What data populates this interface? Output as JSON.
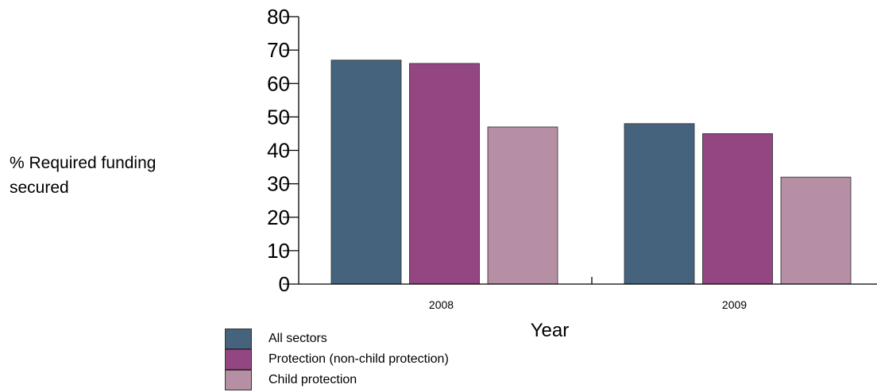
{
  "chart_data": {
    "type": "bar",
    "ylabel_lines": [
      "% Required funding",
      "secured"
    ],
    "xlabel": "Year",
    "categories": [
      "2008",
      "2009"
    ],
    "ylim": [
      0,
      80
    ],
    "yticks": [
      0,
      10,
      20,
      30,
      40,
      50,
      60,
      70,
      80
    ],
    "series": [
      {
        "name": "All sectors",
        "values": [
          67,
          48
        ],
        "color": "#46637d"
      },
      {
        "name": "Protection (non-child protection)",
        "values": [
          66,
          45
        ],
        "color": "#934682"
      },
      {
        "name": "Child protection",
        "values": [
          47,
          32
        ],
        "color": "#b78fa5"
      }
    ],
    "legend_position": "bottom-left"
  }
}
